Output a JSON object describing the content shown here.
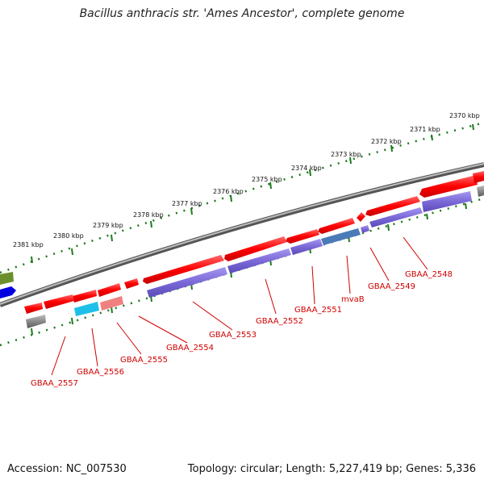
{
  "title": "Bacillus anthracis str. 'Ames Ancestor', complete genome",
  "footer": {
    "accession": "Accession: NC_007530",
    "stats": "Topology: circular; Length: 5,227,419 bp; Genes: 5,336"
  },
  "scale_labels": [
    "2370 kbp",
    "2371 kbp",
    "2372 kbp",
    "2373 kbp",
    "2374 kbp",
    "2375 kbp",
    "2376 kbp",
    "2377 kbp",
    "2378 kbp",
    "2379 kbp",
    "2380 kbp",
    "2381 kbp"
  ],
  "gene_labels": [
    "GBAA_2548",
    "GBAA_2549",
    "mvaB",
    "GBAA_2551",
    "GBAA_2552",
    "GBAA_2553",
    "GBAA_2554",
    "GBAA_2555",
    "GBAA_2556",
    "GBAA_2557"
  ],
  "colors": {
    "backbone": "#8a8a8a",
    "cds": "#ff0000",
    "gene": "#7b68d8",
    "ruler": "#1a7a1a",
    "label": "#d00000"
  }
}
